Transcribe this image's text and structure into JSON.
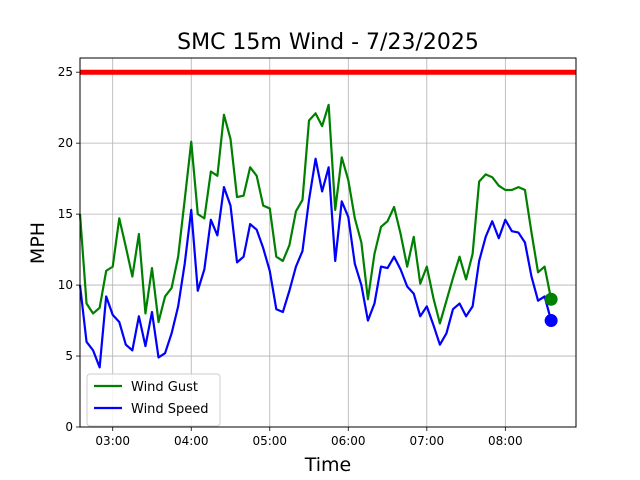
{
  "chart_data": {
    "type": "line",
    "title": "SMC 15m Wind - 7/23/2025",
    "xlabel": "Time",
    "ylabel": "MPH",
    "ylim": [
      0,
      26
    ],
    "xlim": [
      "02:35",
      "08:54"
    ],
    "x_ticks": [
      "03:00",
      "04:00",
      "05:00",
      "06:00",
      "07:00",
      "08:00"
    ],
    "y_ticks": [
      0,
      5,
      10,
      15,
      20,
      25
    ],
    "grid": true,
    "legend_position": "lower-left",
    "threshold": {
      "value": 25,
      "color": "#ff0000"
    },
    "series": [
      {
        "name": "Wind Gust",
        "color": "#008000",
        "points": [
          [
            "02:35",
            15.0
          ],
          [
            "02:40",
            8.7
          ],
          [
            "02:45",
            8.0
          ],
          [
            "02:50",
            8.4
          ],
          [
            "02:55",
            11.0
          ],
          [
            "03:00",
            11.3
          ],
          [
            "03:05",
            14.7
          ],
          [
            "03:10",
            12.7
          ],
          [
            "03:15",
            10.6
          ],
          [
            "03:20",
            13.6
          ],
          [
            "03:25",
            8.0
          ],
          [
            "03:30",
            11.2
          ],
          [
            "03:35",
            7.4
          ],
          [
            "03:40",
            9.2
          ],
          [
            "03:45",
            9.8
          ],
          [
            "03:50",
            12.0
          ],
          [
            "03:55",
            16.0
          ],
          [
            "04:00",
            20.1
          ],
          [
            "04:05",
            15.0
          ],
          [
            "04:10",
            14.7
          ],
          [
            "04:15",
            18.0
          ],
          [
            "04:20",
            17.7
          ],
          [
            "04:25",
            22.0
          ],
          [
            "04:30",
            20.3
          ],
          [
            "04:35",
            16.2
          ],
          [
            "04:40",
            16.3
          ],
          [
            "04:45",
            18.3
          ],
          [
            "04:50",
            17.7
          ],
          [
            "04:55",
            15.6
          ],
          [
            "05:00",
            15.4
          ],
          [
            "05:05",
            12.0
          ],
          [
            "05:10",
            11.7
          ],
          [
            "05:15",
            12.8
          ],
          [
            "05:20",
            15.2
          ],
          [
            "05:25",
            16.0
          ],
          [
            "05:30",
            21.6
          ],
          [
            "05:35",
            22.1
          ],
          [
            "05:40",
            21.2
          ],
          [
            "05:45",
            22.7
          ],
          [
            "05:50",
            15.3
          ],
          [
            "05:55",
            19.0
          ],
          [
            "06:00",
            17.4
          ],
          [
            "06:05",
            14.7
          ],
          [
            "06:10",
            13.0
          ],
          [
            "06:15",
            9.0
          ],
          [
            "06:20",
            12.2
          ],
          [
            "06:25",
            14.1
          ],
          [
            "06:30",
            14.5
          ],
          [
            "06:35",
            15.5
          ],
          [
            "06:40",
            13.6
          ],
          [
            "06:45",
            11.3
          ],
          [
            "06:50",
            13.4
          ],
          [
            "06:55",
            10.1
          ],
          [
            "07:00",
            11.3
          ],
          [
            "07:05",
            9.1
          ],
          [
            "07:10",
            7.3
          ],
          [
            "07:15",
            8.9
          ],
          [
            "07:20",
            10.5
          ],
          [
            "07:25",
            12.0
          ],
          [
            "07:30",
            10.4
          ],
          [
            "07:35",
            12.2
          ],
          [
            "07:40",
            17.3
          ],
          [
            "07:45",
            17.8
          ],
          [
            "07:50",
            17.6
          ],
          [
            "07:55",
            17.0
          ],
          [
            "08:00",
            16.7
          ],
          [
            "08:05",
            16.7
          ],
          [
            "08:10",
            16.9
          ],
          [
            "08:15",
            16.7
          ],
          [
            "08:20",
            13.7
          ],
          [
            "08:25",
            10.9
          ],
          [
            "08:30",
            11.3
          ],
          [
            "08:35",
            9.0
          ]
        ],
        "last_point": [
          "08:35",
          9.0
        ]
      },
      {
        "name": "Wind Speed",
        "color": "#0000ff",
        "points": [
          [
            "02:35",
            10.0
          ],
          [
            "02:40",
            6.0
          ],
          [
            "02:45",
            5.4
          ],
          [
            "02:50",
            4.2
          ],
          [
            "02:55",
            9.2
          ],
          [
            "03:00",
            7.9
          ],
          [
            "03:05",
            7.4
          ],
          [
            "03:10",
            5.8
          ],
          [
            "03:15",
            5.4
          ],
          [
            "03:20",
            7.8
          ],
          [
            "03:25",
            5.7
          ],
          [
            "03:30",
            8.1
          ],
          [
            "03:35",
            4.9
          ],
          [
            "03:40",
            5.2
          ],
          [
            "03:45",
            6.6
          ],
          [
            "03:50",
            8.5
          ],
          [
            "03:55",
            11.5
          ],
          [
            "04:00",
            15.3
          ],
          [
            "04:05",
            9.6
          ],
          [
            "04:10",
            11.1
          ],
          [
            "04:15",
            14.6
          ],
          [
            "04:20",
            13.5
          ],
          [
            "04:25",
            16.9
          ],
          [
            "04:30",
            15.6
          ],
          [
            "04:35",
            11.6
          ],
          [
            "04:40",
            12.0
          ],
          [
            "04:45",
            14.3
          ],
          [
            "04:50",
            13.9
          ],
          [
            "04:55",
            12.6
          ],
          [
            "05:00",
            11.0
          ],
          [
            "05:05",
            8.3
          ],
          [
            "05:10",
            8.1
          ],
          [
            "05:15",
            9.6
          ],
          [
            "05:20",
            11.3
          ],
          [
            "05:25",
            12.4
          ],
          [
            "05:30",
            16.0
          ],
          [
            "05:35",
            18.9
          ],
          [
            "05:40",
            16.6
          ],
          [
            "05:45",
            18.3
          ],
          [
            "05:50",
            11.7
          ],
          [
            "05:55",
            15.9
          ],
          [
            "06:00",
            14.8
          ],
          [
            "06:05",
            11.5
          ],
          [
            "06:10",
            10.0
          ],
          [
            "06:15",
            7.5
          ],
          [
            "06:20",
            8.7
          ],
          [
            "06:25",
            11.3
          ],
          [
            "06:30",
            11.2
          ],
          [
            "06:35",
            12.0
          ],
          [
            "06:40",
            11.1
          ],
          [
            "06:45",
            9.9
          ],
          [
            "06:50",
            9.4
          ],
          [
            "06:55",
            7.8
          ],
          [
            "07:00",
            8.5
          ],
          [
            "07:05",
            7.2
          ],
          [
            "07:10",
            5.8
          ],
          [
            "07:15",
            6.6
          ],
          [
            "07:20",
            8.3
          ],
          [
            "07:25",
            8.7
          ],
          [
            "07:30",
            7.8
          ],
          [
            "07:35",
            8.5
          ],
          [
            "07:40",
            11.7
          ],
          [
            "07:45",
            13.4
          ],
          [
            "07:50",
            14.5
          ],
          [
            "07:55",
            13.3
          ],
          [
            "08:00",
            14.6
          ],
          [
            "08:05",
            13.8
          ],
          [
            "08:10",
            13.7
          ],
          [
            "08:15",
            13.0
          ],
          [
            "08:20",
            10.6
          ],
          [
            "08:25",
            8.9
          ],
          [
            "08:30",
            9.2
          ],
          [
            "08:35",
            7.5
          ]
        ],
        "last_point": [
          "08:35",
          7.5
        ]
      }
    ]
  }
}
